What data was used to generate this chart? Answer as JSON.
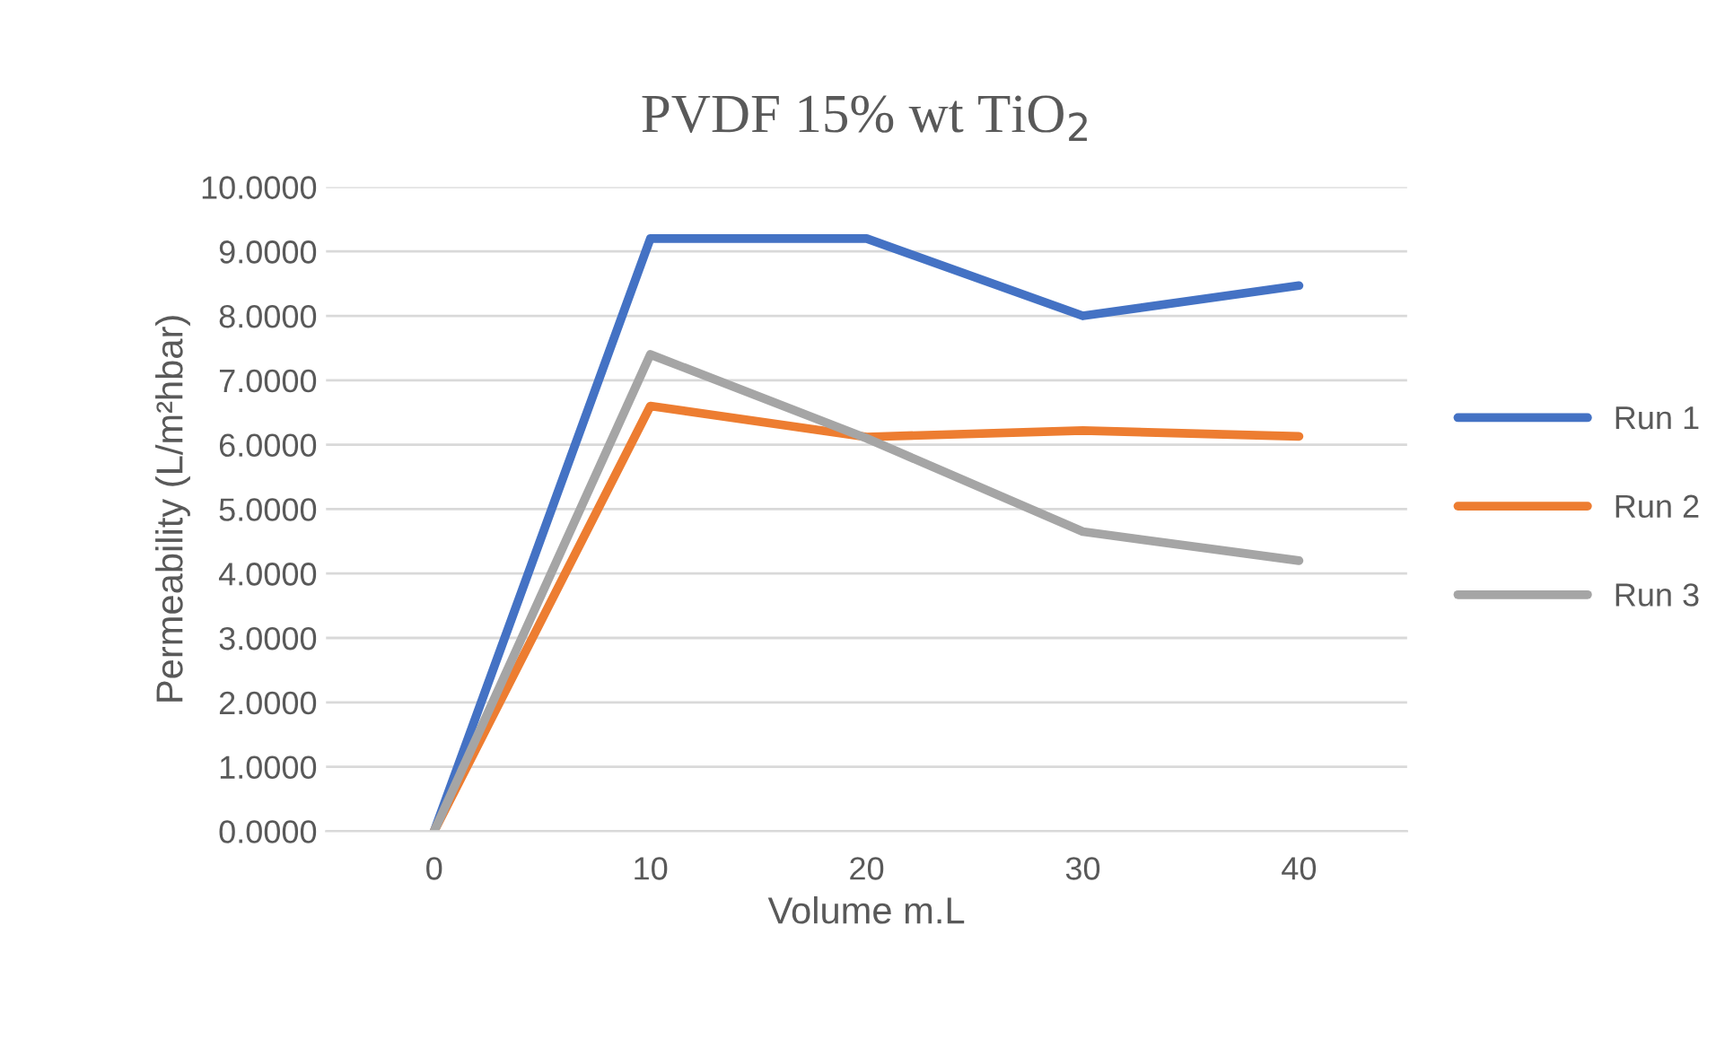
{
  "chart_data": {
    "type": "line",
    "title": "PVDF 15% wt TiO$_{2}$",
    "xlabel": "Volume m.L",
    "ylabel": "Permeability (L/m²hbar)",
    "categories": [
      "0",
      "10",
      "20",
      "30",
      "40"
    ],
    "series": [
      {
        "name": "Run 1",
        "color": "#4472c4",
        "values": [
          0,
          9.2,
          9.2,
          8.0,
          8.47
        ]
      },
      {
        "name": "Run 2",
        "color": "#ed7d31",
        "values": [
          0,
          6.6,
          6.12,
          6.22,
          6.13
        ]
      },
      {
        "name": "Run 3",
        "color": "#a5a5a5",
        "values": [
          0,
          7.4,
          6.1,
          4.65,
          4.2
        ]
      }
    ],
    "ylim": [
      0,
      10
    ],
    "yticks": [
      {
        "value": 0,
        "label": "0.0000"
      },
      {
        "value": 1,
        "label": "1.0000"
      },
      {
        "value": 2,
        "label": "2.0000"
      },
      {
        "value": 3,
        "label": "3.0000"
      },
      {
        "value": 4,
        "label": "4.0000"
      },
      {
        "value": 5,
        "label": "5.0000"
      },
      {
        "value": 6,
        "label": "6.0000"
      },
      {
        "value": 7,
        "label": "7.0000"
      },
      {
        "value": 8,
        "label": "8.0000"
      },
      {
        "value": 9,
        "label": "9.0000"
      },
      {
        "value": 10,
        "label": "10.0000"
      }
    ],
    "grid": "y",
    "legend": "right",
    "marker": "none",
    "line_style": "solid"
  }
}
